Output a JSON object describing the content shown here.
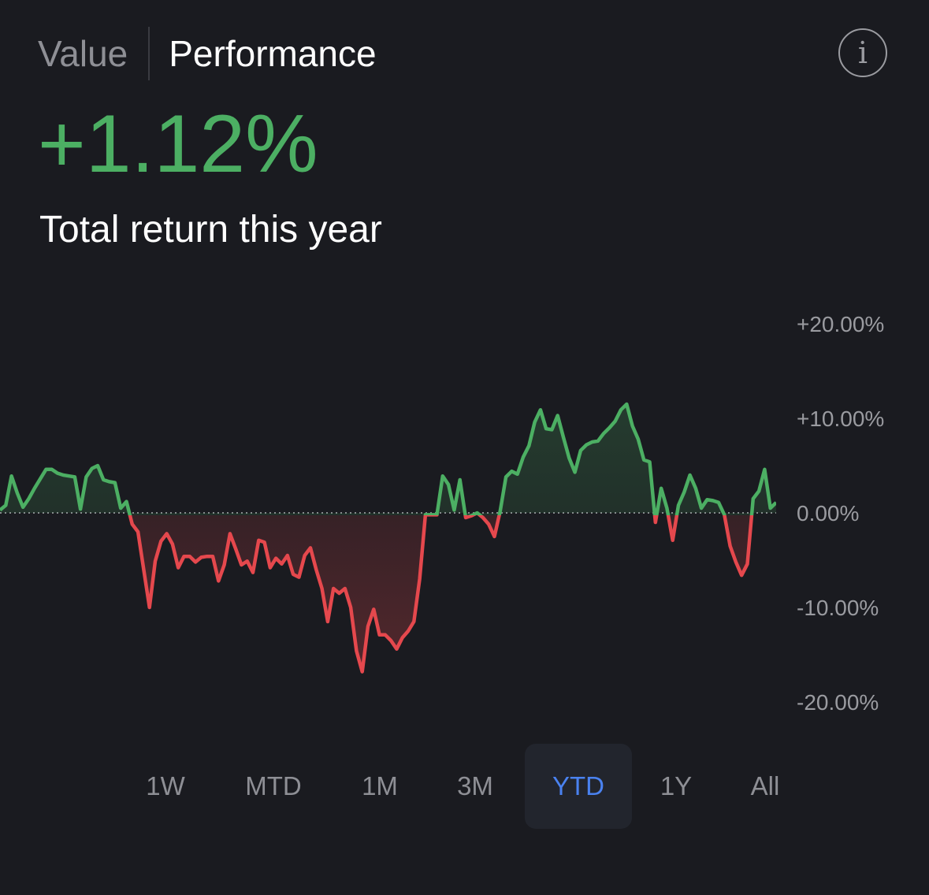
{
  "tabs": [
    {
      "label": "Value",
      "active": false
    },
    {
      "label": "Performance",
      "active": true
    }
  ],
  "info_icon": "info-icon",
  "return_value": "+1.12%",
  "return_label": "Total return this year",
  "colors": {
    "positive": "#4caf63",
    "negative": "#e5484d",
    "accent": "#4a82f0",
    "background": "#1a1b20"
  },
  "ranges": [
    {
      "label": "1W",
      "active": false
    },
    {
      "label": "MTD",
      "active": false
    },
    {
      "label": "1M",
      "active": false
    },
    {
      "label": "3M",
      "active": false
    },
    {
      "label": "YTD",
      "active": true
    },
    {
      "label": "1Y",
      "active": false
    },
    {
      "label": "All",
      "active": false
    }
  ],
  "chart_data": {
    "type": "area",
    "y_ticks": [
      "+20.00%",
      "+10.00%",
      "0.00%",
      "-10.00%",
      "-20.00%"
    ],
    "ylim": [
      -20,
      20
    ],
    "baseline": 0,
    "baseline_style": "dotted",
    "grid": false,
    "series": [
      {
        "values": [
          0.3,
          0.8,
          3.9,
          2.1,
          0.6,
          1.5,
          2.6,
          3.6,
          4.6,
          4.6,
          4.2,
          4.0,
          3.9,
          3.8,
          0.4,
          3.8,
          4.7,
          5.0,
          3.5,
          3.3,
          3.2,
          0.5,
          1.2,
          -1.2,
          -2.0,
          -6.0,
          -10.0,
          -5.1,
          -3.0,
          -2.2,
          -3.3,
          -5.8,
          -4.6,
          -4.6,
          -5.2,
          -4.7,
          -4.6,
          -4.6,
          -7.2,
          -5.5,
          -2.2,
          -3.8,
          -5.5,
          -5.1,
          -6.3,
          -2.9,
          -3.1,
          -5.8,
          -4.8,
          -5.4,
          -4.5,
          -6.5,
          -6.8,
          -4.5,
          -3.7,
          -6.0,
          -8.0,
          -11.5,
          -8.0,
          -8.5,
          -8.0,
          -10.0,
          -14.6,
          -16.8,
          -12.0,
          -10.2,
          -12.9,
          -12.9,
          -13.5,
          -14.4,
          -13.2,
          -12.5,
          -11.5,
          -7.0,
          -0.2,
          -0.2,
          -0.2,
          3.9,
          3.0,
          0.3,
          3.5,
          -0.5,
          -0.3,
          0.0,
          -0.5,
          -1.2,
          -2.5,
          0.2,
          3.8,
          4.4,
          4.1,
          5.9,
          7.1,
          9.6,
          10.9,
          8.9,
          8.8,
          10.3,
          8.0,
          5.8,
          4.3,
          6.6,
          7.2,
          7.5,
          7.6,
          8.4,
          9.0,
          9.7,
          10.9,
          11.5,
          9.2,
          7.8,
          5.6,
          5.4,
          -1.0,
          2.6,
          0.5,
          -2.9,
          0.8,
          2.2,
          4.0,
          2.6,
          0.5,
          1.4,
          1.3,
          1.1,
          -0.2,
          -3.5,
          -5.2,
          -6.6,
          -5.4,
          1.5,
          2.3,
          4.6,
          0.5,
          1.1
        ],
        "color_above": "#4caf63",
        "color_below": "#e5484d"
      }
    ]
  }
}
